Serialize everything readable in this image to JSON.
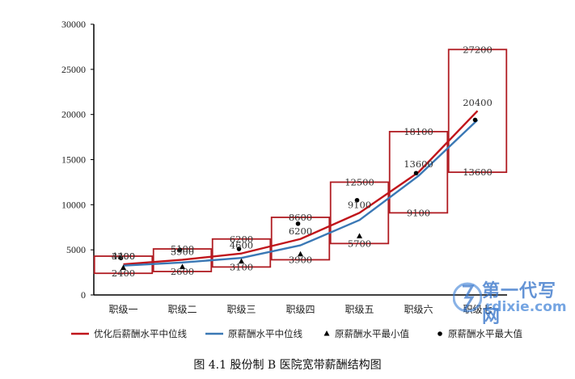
{
  "chart_data": {
    "type": "line",
    "categories": [
      "职级一",
      "职级二",
      "职级三",
      "职级四",
      "职级五",
      "职级六",
      "职级七"
    ],
    "ylim": [
      0,
      30000
    ],
    "yticks": [
      0,
      5000,
      10000,
      15000,
      20000,
      25000,
      30000
    ],
    "band_boxes": [
      {
        "min": 2400,
        "mid": 3400,
        "max": 4300
      },
      {
        "min": 2600,
        "mid": 3900,
        "max": 5100
      },
      {
        "min": 3100,
        "mid": 4600,
        "max": 6200
      },
      {
        "min": 3900,
        "mid": 6200,
        "max": 8600
      },
      {
        "min": 5700,
        "mid": 9100,
        "max": 12500
      },
      {
        "min": 9100,
        "mid": 13600,
        "max": 18100
      },
      {
        "min": 13600,
        "mid": 20400,
        "max": 27200
      }
    ],
    "series": [
      {
        "name": "优化后薪酬水平中位线",
        "values": [
          3400,
          3900,
          4600,
          6200,
          9100,
          13600,
          20400
        ],
        "color": "#c0151b"
      },
      {
        "name": "原薪酬水平中位线",
        "values": [
          3250,
          3600,
          4100,
          5500,
          8300,
          13200,
          19400
        ],
        "color": "#3a78b5"
      },
      {
        "name": "原薪酬水平最小值",
        "values": [
          3000,
          3100,
          3700,
          4500,
          6500,
          null,
          null
        ],
        "marker": "triangle"
      },
      {
        "name": "原薪酬水平最大值",
        "values": [
          4100,
          5000,
          5100,
          7900,
          10500,
          13500,
          19400
        ],
        "marker": "circle"
      }
    ],
    "box_color": "#b01c22",
    "legend_position": "bottom",
    "grid": false,
    "caption": "图 4.1    股份制 B 医院宽带薪酬结构图"
  },
  "watermark": {
    "line1": "第一代写网",
    "line2": "rdixie.com"
  }
}
